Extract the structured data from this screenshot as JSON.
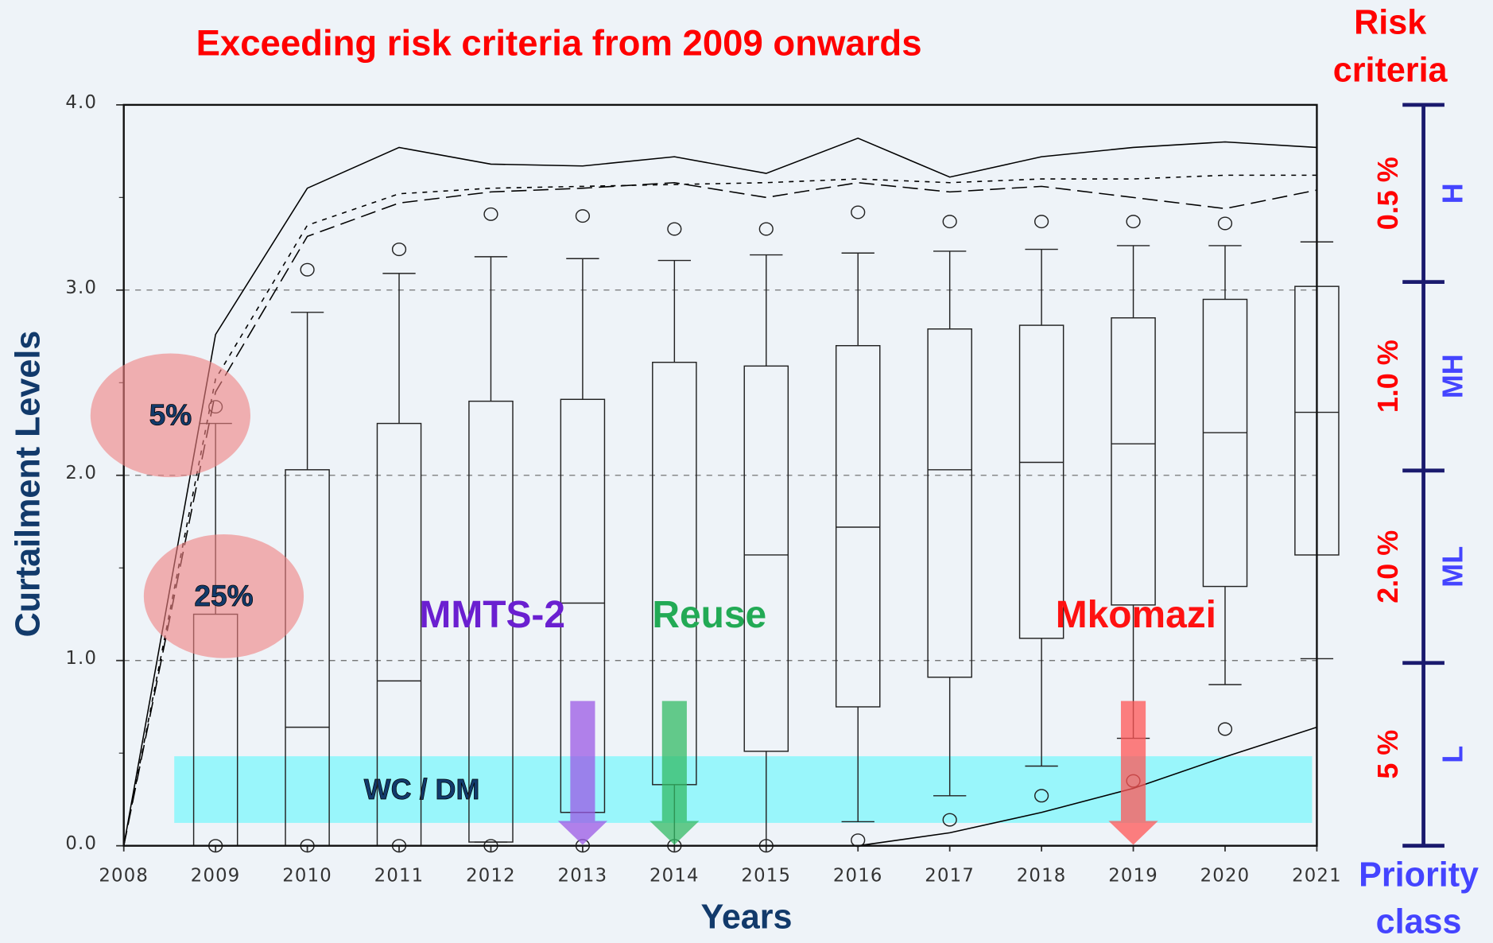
{
  "chart_data": {
    "type": "box",
    "title": "Exceeding risk criteria from 2009 onwards",
    "x_label": "Years",
    "y_label": "Curtailment Levels",
    "xlim": [
      2008,
      2021
    ],
    "xticks": [
      2008,
      2009,
      2010,
      2011,
      2012,
      2013,
      2014,
      2015,
      2016,
      2017,
      2018,
      2019,
      2020,
      2021
    ],
    "ylim": [
      0,
      4
    ],
    "yticks": [
      {
        "value": 0,
        "label": "0.0"
      },
      {
        "value": 1,
        "label": "1.0"
      },
      {
        "value": 2,
        "label": "2.0"
      },
      {
        "value": 3,
        "label": "3.0"
      },
      {
        "value": 4,
        "label": "4.0"
      }
    ],
    "minor_yticks": [
      0.5,
      1.5,
      2.5,
      3.5
    ],
    "grid_yticks": [
      1,
      2,
      3
    ],
    "boxes": [
      {
        "year": 2009,
        "low": 0,
        "q1": 0,
        "median": null,
        "q3": 1.25,
        "high": 2.28,
        "outliers": [
          0,
          2.37
        ]
      },
      {
        "year": 2010,
        "low": 0,
        "q1": 0,
        "median": 0.64,
        "q3": 2.03,
        "high": 2.88,
        "outliers": [
          0,
          3.11
        ]
      },
      {
        "year": 2011,
        "low": 0,
        "q1": 0,
        "median": 0.89,
        "q3": 2.28,
        "high": 3.09,
        "outliers": [
          0,
          3.22
        ]
      },
      {
        "year": 2012,
        "low": 0.02,
        "q1": 0.02,
        "median": null,
        "q3": 2.4,
        "high": 3.18,
        "outliers": [
          0,
          3.41
        ]
      },
      {
        "year": 2013,
        "low": 0.18,
        "q1": 0.18,
        "median": 1.31,
        "q3": 2.41,
        "high": 3.17,
        "outliers": [
          0,
          3.4
        ]
      },
      {
        "year": 2014,
        "low": 0,
        "q1": 0.33,
        "median": null,
        "q3": 2.61,
        "high": 3.16,
        "outliers": [
          0,
          3.33
        ]
      },
      {
        "year": 2015,
        "low": 0,
        "q1": 0.51,
        "median": 1.57,
        "q3": 2.59,
        "high": 3.19,
        "outliers": [
          0,
          3.33
        ]
      },
      {
        "year": 2016,
        "low": 0.13,
        "q1": 0.75,
        "median": 1.72,
        "q3": 2.7,
        "high": 3.2,
        "outliers": [
          0.03,
          3.42
        ]
      },
      {
        "year": 2017,
        "low": 0.27,
        "q1": 0.91,
        "median": 2.03,
        "q3": 2.79,
        "high": 3.21,
        "outliers": [
          0.14,
          3.37
        ]
      },
      {
        "year": 2018,
        "low": 0.43,
        "q1": 1.12,
        "median": 2.07,
        "q3": 2.81,
        "high": 3.22,
        "outliers": [
          0.27,
          3.37
        ]
      },
      {
        "year": 2019,
        "low": 0.58,
        "q1": 1.3,
        "median": 2.17,
        "q3": 2.85,
        "high": 3.24,
        "outliers": [
          0.35,
          3.37
        ]
      },
      {
        "year": 2020,
        "low": 0.87,
        "q1": 1.4,
        "median": 2.23,
        "q3": 2.95,
        "high": 3.24,
        "outliers": [
          0.63,
          3.36
        ]
      },
      {
        "year": 2021,
        "low": 1.01,
        "q1": 1.57,
        "median": 2.34,
        "q3": 3.02,
        "high": 3.26,
        "outliers": []
      }
    ],
    "x": [
      2008,
      2009,
      2010,
      2011,
      2012,
      2013,
      2014,
      2015,
      2016,
      2017,
      2018,
      2019,
      2020,
      2021
    ],
    "series": [
      {
        "style": "solid",
        "color": "#000000",
        "values": [
          0,
          2.76,
          3.55,
          3.77,
          3.68,
          3.67,
          3.72,
          3.63,
          3.82,
          3.61,
          3.72,
          3.77,
          3.8,
          3.77
        ]
      },
      {
        "style": "short-dash",
        "color": "#000000",
        "values": [
          0,
          2.52,
          3.35,
          3.52,
          3.55,
          3.56,
          3.57,
          3.58,
          3.6,
          3.58,
          3.6,
          3.6,
          3.62,
          3.62
        ]
      },
      {
        "style": "long-dash",
        "color": "#000000",
        "values": [
          0,
          2.45,
          3.29,
          3.47,
          3.53,
          3.55,
          3.58,
          3.5,
          3.58,
          3.53,
          3.56,
          3.5,
          3.44,
          3.54
        ]
      },
      {
        "style": "solid",
        "color": "#000000",
        "values": [
          0,
          0,
          0,
          0,
          0,
          0,
          0,
          0,
          0,
          0.07,
          0.18,
          0.31,
          0.48,
          0.64
        ]
      }
    ],
    "interventions": [
      {
        "label": "MMTS-2",
        "year": 2013,
        "color": "#9b59e6",
        "text_color": "#6a1fd0"
      },
      {
        "label": "Reuse",
        "year": 2014,
        "color": "#33bb66",
        "text_color": "#22aa55"
      },
      {
        "label": "Mkomazi",
        "year": 2019,
        "color": "#ff5555",
        "text_color": "#ff1111"
      }
    ],
    "band_label": "WC / DM",
    "circle_labels": [
      "5%",
      "25%"
    ],
    "right_axis_title": [
      "Risk",
      "criteria"
    ],
    "right_axis_footer": [
      "Priority",
      "class"
    ],
    "risk_classes": [
      {
        "criterion": "0.5 %",
        "class": "H"
      },
      {
        "criterion": "1.0 %",
        "class": "MH"
      },
      {
        "criterion": "2.0 %",
        "class": "ML"
      },
      {
        "criterion": "5 %",
        "class": "L"
      }
    ]
  }
}
